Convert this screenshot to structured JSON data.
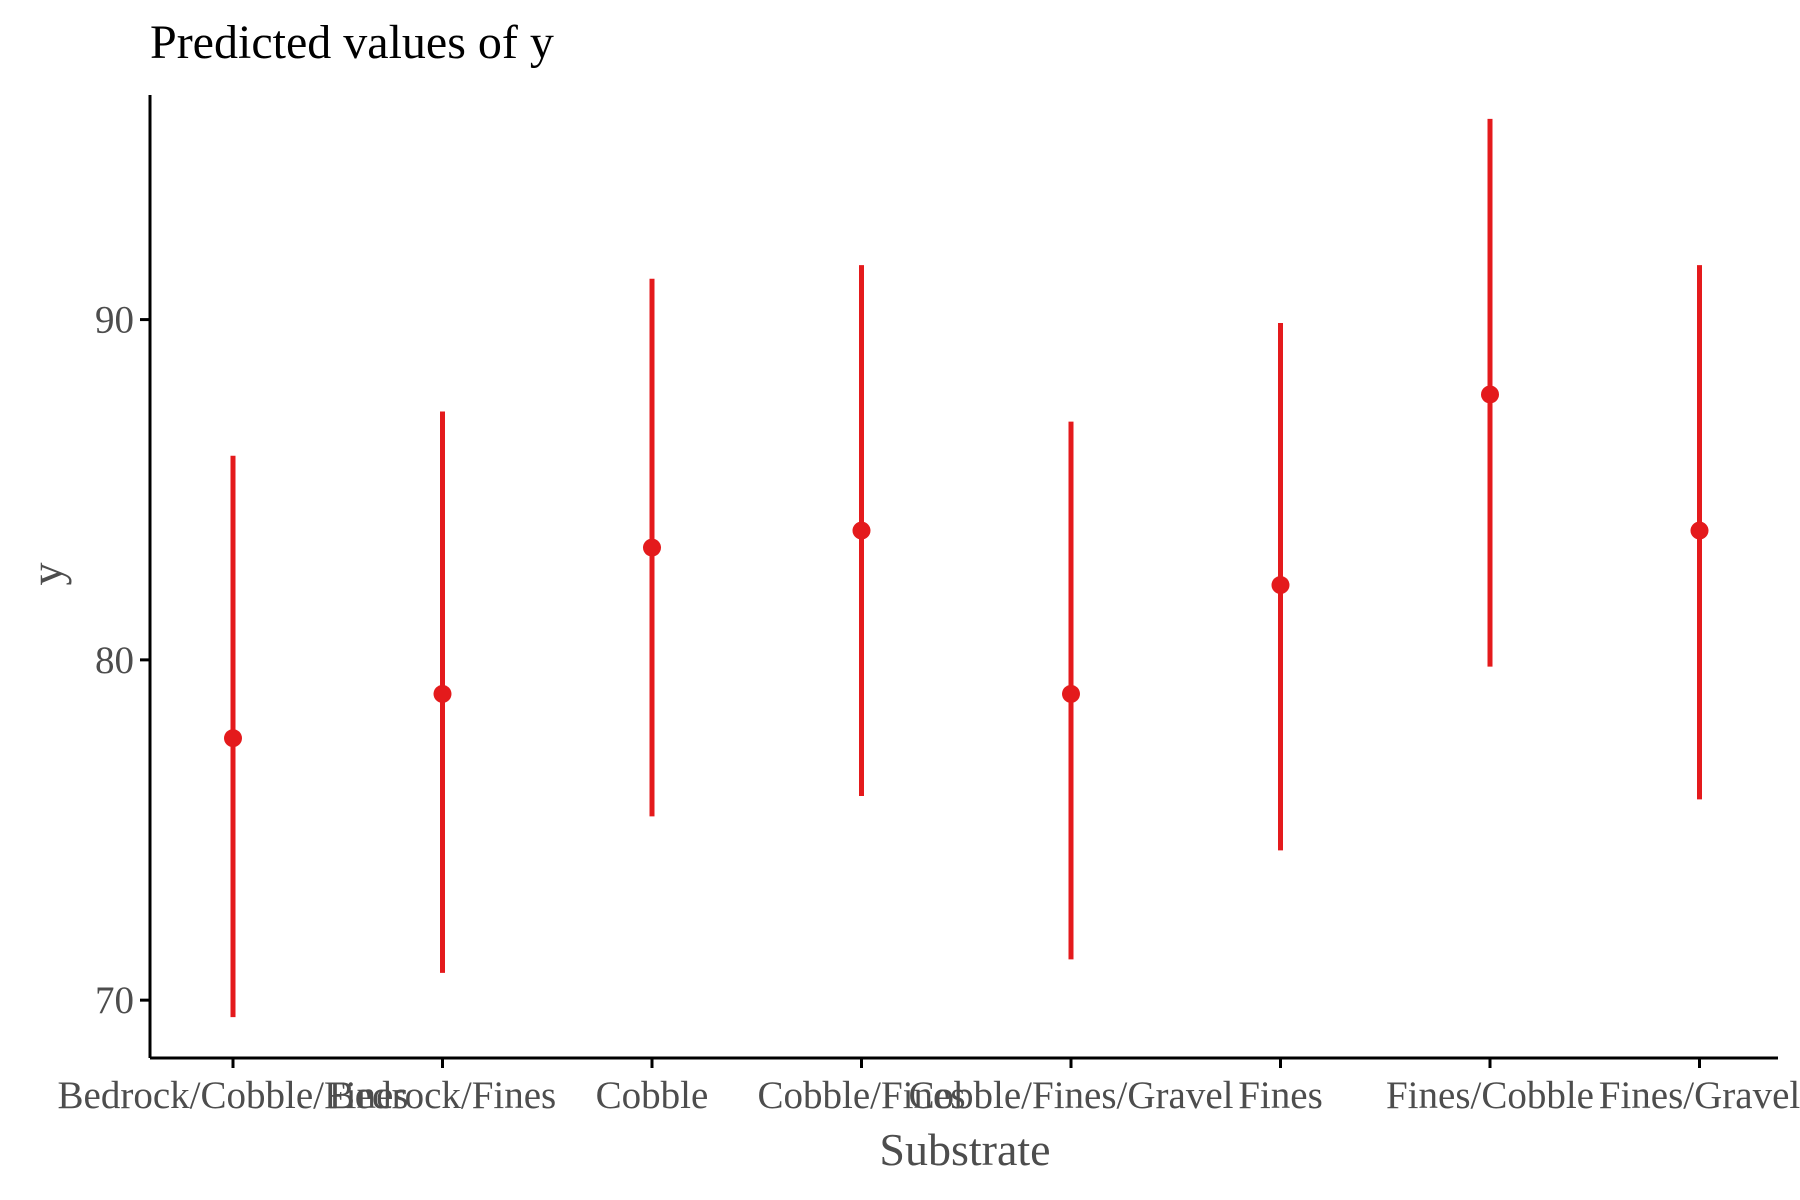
{
  "chart_data": {
    "type": "scatter",
    "title": "Predicted values of y",
    "xlabel": "Substrate",
    "ylabel": "y",
    "categories": [
      "Bedrock/Cobble/Fines",
      "Bedrock/Fines",
      "Cobble",
      "Cobble/Fines",
      "Cobble/Fines/Gravel",
      "Fines",
      "Fines/Cobble",
      "Fines/Gravel"
    ],
    "series": [
      {
        "values": [
          77.7,
          79.0,
          83.3,
          83.8,
          79.0,
          82.2,
          87.8,
          83.8
        ],
        "lower": [
          69.5,
          70.8,
          75.4,
          76.0,
          71.2,
          74.4,
          79.8,
          75.9
        ],
        "upper": [
          86.0,
          87.3,
          91.2,
          91.6,
          87.0,
          89.9,
          95.9,
          91.6
        ]
      }
    ],
    "ylim": [
      68.3,
      96.6
    ],
    "yticks": [
      70,
      80,
      90
    ],
    "grid": false,
    "colors": {
      "points": "#e41a1c",
      "axis": "#000000",
      "text": "#4d4d4d"
    }
  }
}
